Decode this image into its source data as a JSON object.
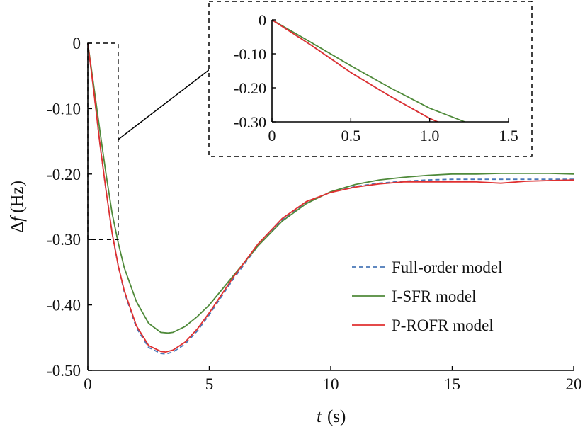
{
  "chart_data": {
    "type": "line",
    "xlabel_var": "t",
    "xlabel_unit": "(s)",
    "ylabel_sym": "Δ",
    "ylabel_var": "f",
    "ylabel_unit": "(Hz)",
    "xlim": [
      0,
      20
    ],
    "ylim": [
      -0.5,
      0
    ],
    "xticks": [
      0,
      5,
      10,
      15,
      20
    ],
    "xtick_labels": [
      "0",
      "5",
      "10",
      "15",
      "20"
    ],
    "yticks": [
      0,
      -0.1,
      -0.2,
      -0.3,
      -0.4,
      -0.5
    ],
    "ytick_labels": [
      "0",
      "-0.10",
      "-0.20",
      "-0.30",
      "-0.40",
      "-0.50"
    ],
    "legend_position": "bottom-right",
    "grid": false,
    "series": [
      {
        "name": "Full-order model",
        "color": "#4a78b8",
        "style": "dashed",
        "x": [
          0,
          0.25,
          0.5,
          0.75,
          1.0,
          1.25,
          1.5,
          2.0,
          2.5,
          3.0,
          3.2,
          3.5,
          4.0,
          4.5,
          5.0,
          6.0,
          7.0,
          8.0,
          9.0,
          10.0,
          11.0,
          12.0,
          13.0,
          14.0,
          15.0,
          16.0,
          17.0,
          18.0,
          19.0,
          20.0
        ],
        "y": [
          0,
          -0.075,
          -0.155,
          -0.225,
          -0.29,
          -0.34,
          -0.38,
          -0.435,
          -0.465,
          -0.474,
          -0.475,
          -0.472,
          -0.46,
          -0.44,
          -0.415,
          -0.36,
          -0.31,
          -0.27,
          -0.243,
          -0.228,
          -0.219,
          -0.214,
          -0.211,
          -0.209,
          -0.208,
          -0.208,
          -0.208,
          -0.208,
          -0.208,
          -0.208
        ]
      },
      {
        "name": "I-SFR model",
        "color": "#4f8a3a",
        "style": "solid",
        "x": [
          0,
          0.25,
          0.5,
          0.75,
          1.0,
          1.25,
          1.5,
          2.0,
          2.5,
          3.0,
          3.3,
          3.5,
          4.0,
          4.5,
          5.0,
          6.0,
          7.0,
          8.0,
          9.0,
          10.0,
          11.0,
          12.0,
          13.0,
          14.0,
          15.0,
          16.0,
          17.0,
          18.0,
          19.0,
          20.0
        ],
        "y": [
          0,
          -0.067,
          -0.135,
          -0.2,
          -0.26,
          -0.305,
          -0.343,
          -0.395,
          -0.428,
          -0.442,
          -0.443,
          -0.442,
          -0.433,
          -0.418,
          -0.4,
          -0.355,
          -0.31,
          -0.272,
          -0.245,
          -0.227,
          -0.216,
          -0.209,
          -0.205,
          -0.202,
          -0.2,
          -0.2,
          -0.199,
          -0.199,
          -0.199,
          -0.2
        ]
      },
      {
        "name": "P-ROFR model",
        "color": "#e03030",
        "style": "solid",
        "x": [
          0,
          0.25,
          0.5,
          0.75,
          1.0,
          1.25,
          1.5,
          2.0,
          2.5,
          3.0,
          3.2,
          3.5,
          4.0,
          4.5,
          5.0,
          6.0,
          7.0,
          8.0,
          9.0,
          10.0,
          11.0,
          12.0,
          13.0,
          14.0,
          15.0,
          16.0,
          17.0,
          18.0,
          19.0,
          20.0
        ],
        "y": [
          0,
          -0.075,
          -0.155,
          -0.225,
          -0.29,
          -0.34,
          -0.378,
          -0.432,
          -0.462,
          -0.471,
          -0.472,
          -0.469,
          -0.457,
          -0.437,
          -0.412,
          -0.357,
          -0.307,
          -0.268,
          -0.242,
          -0.228,
          -0.22,
          -0.215,
          -0.212,
          -0.212,
          -0.212,
          -0.212,
          -0.214,
          -0.211,
          -0.21,
          -0.209
        ]
      }
    ],
    "inset": {
      "xlim": [
        0,
        1.5
      ],
      "ylim": [
        -0.3,
        0
      ],
      "xticks": [
        0,
        0.5,
        1.0,
        1.5
      ],
      "xtick_labels": [
        "0",
        "0.5",
        "1.0",
        "1.5"
      ],
      "yticks": [
        0,
        -0.1,
        -0.2,
        -0.3
      ],
      "ytick_labels": [
        "0",
        "-0.10",
        "-0.20",
        "-0.30"
      ],
      "zoom_region": {
        "x": [
          0,
          1.25
        ],
        "y": [
          -0.3,
          0
        ]
      }
    }
  }
}
